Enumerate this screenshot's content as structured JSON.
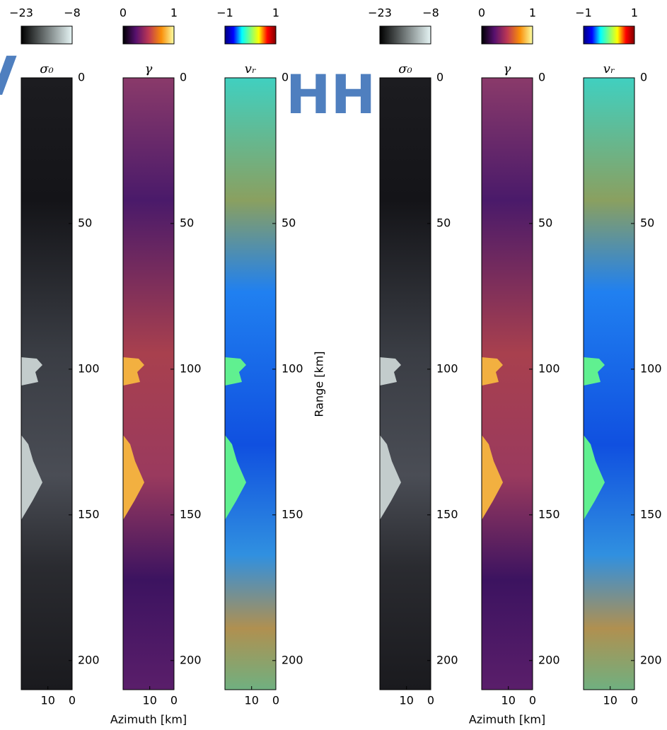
{
  "chart_data": [
    {
      "type": "image",
      "title": "σ₀",
      "ylim": [
        0,
        210
      ],
      "yticks": [
        0,
        50,
        100,
        150,
        200
      ],
      "xlim": [
        21,
        0
      ],
      "xticks": [
        10,
        0
      ],
      "colorbar": {
        "lim": [
          -23,
          -8
        ],
        "ticks": [
          {
            "value": -23,
            "label": "−23"
          },
          {
            "value": -8,
            "label": "−8"
          }
        ],
        "colors": [
          "#000000",
          "#e6f5f5"
        ]
      }
    },
    {
      "type": "image",
      "title": "γ",
      "ylim": [
        0,
        210
      ],
      "yticks": [
        0,
        50,
        100,
        150,
        200
      ],
      "xlim": [
        21,
        0
      ],
      "xticks": [
        10,
        0
      ],
      "xlabel": "Azimuth [km]",
      "colorbar": {
        "lim": [
          0,
          1
        ],
        "ticks": [
          0,
          1
        ],
        "colors": [
          "#000004",
          "#57106e",
          "#bc3754",
          "#f98e09",
          "#fcffa4"
        ]
      }
    },
    {
      "type": "image",
      "title": "vᵣ",
      "ylim": [
        0,
        210
      ],
      "yticks": [
        0,
        50,
        100,
        150,
        200
      ],
      "xlim": [
        21,
        0
      ],
      "xticks": [
        10,
        0
      ],
      "ylabel": "Range [km]",
      "colorbar": {
        "lim": [
          -1,
          1
        ],
        "ticks": [
          {
            "value": -1,
            "label": "−1"
          },
          1
        ],
        "colors": [
          "#00007f",
          "#0000ff",
          "#00ffff",
          "#7fff7f",
          "#ffff00",
          "#ff0000",
          "#7f0000"
        ]
      }
    },
    {
      "type": "image",
      "title": "σ₀",
      "ylim": [
        0,
        210
      ],
      "yticks": [
        0,
        50,
        100,
        150,
        200
      ],
      "xlim": [
        21,
        0
      ],
      "xticks": [
        10,
        0
      ],
      "colorbar": {
        "lim": [
          -23,
          -8
        ],
        "ticks": [
          {
            "value": -23,
            "label": "−23"
          },
          {
            "value": -8,
            "label": "−8"
          }
        ],
        "colors": [
          "#000000",
          "#e6f5f5"
        ]
      }
    },
    {
      "type": "image",
      "title": "γ",
      "ylim": [
        0,
        210
      ],
      "yticks": [
        0,
        50,
        100,
        150,
        200
      ],
      "xlim": [
        21,
        0
      ],
      "xticks": [
        10,
        0
      ],
      "xlabel": "Azimuth [km]",
      "colorbar": {
        "lim": [
          0,
          1
        ],
        "ticks": [
          0,
          1
        ],
        "colors": [
          "#000004",
          "#57106e",
          "#bc3754",
          "#f98e09",
          "#fcffa4"
        ]
      }
    },
    {
      "type": "image",
      "title": "vᵣ",
      "ylim": [
        0,
        210
      ],
      "yticks": [
        0,
        50,
        100,
        150,
        200
      ],
      "xlim": [
        21,
        0
      ],
      "xticks": [
        10,
        0
      ],
      "colorbar": {
        "lim": [
          -1,
          1
        ],
        "ticks": [
          {
            "value": -1,
            "label": "−1"
          },
          1
        ],
        "colors": [
          "#00007f",
          "#0000ff",
          "#00ffff",
          "#7fff7f",
          "#ffff00",
          "#ff0000",
          "#7f0000"
        ]
      }
    }
  ],
  "annotations": [
    "V",
    "HH"
  ]
}
